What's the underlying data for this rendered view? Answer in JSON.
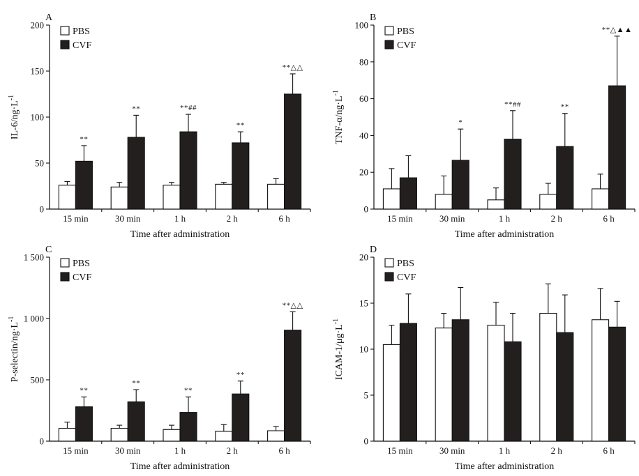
{
  "figure": {
    "series_colors": {
      "PBS": "#ffffff",
      "CVF": "#231f1f"
    },
    "stroke_color": "#111111"
  },
  "chart_data": [
    {
      "panel": "A",
      "type": "bar",
      "ylabel": "IL-6/ng·L",
      "ylabel_sup": "-1",
      "xlabel": "Time after administration",
      "categories": [
        "15 min",
        "30 min",
        "1 h",
        "2 h",
        "6 h"
      ],
      "ylim": [
        0,
        200
      ],
      "yticks": [
        0,
        50,
        100,
        150,
        200
      ],
      "ytick_labels": [
        "0",
        "50",
        "100",
        "150",
        "200"
      ],
      "legend": [
        "PBS",
        "CVF"
      ],
      "legend_position": "top-left",
      "series": [
        {
          "name": "PBS",
          "values": [
            26,
            24,
            26,
            27,
            27
          ],
          "errors": [
            4,
            5,
            3,
            2,
            6
          ]
        },
        {
          "name": "CVF",
          "values": [
            52,
            78,
            84,
            72,
            125
          ],
          "errors": [
            17,
            24,
            19,
            12,
            22
          ]
        }
      ],
      "annotations": [
        "**",
        "**",
        "**##",
        "**",
        "**△△"
      ]
    },
    {
      "panel": "B",
      "type": "bar",
      "ylabel": "TNF-α/ng·L",
      "ylabel_sup": "-1",
      "xlabel": "Time after administration",
      "categories": [
        "15 min",
        "30 min",
        "1 h",
        "2 h",
        "6 h"
      ],
      "ylim": [
        0,
        100
      ],
      "yticks": [
        0,
        20,
        40,
        60,
        80,
        100
      ],
      "ytick_labels": [
        "0",
        "20",
        "40",
        "60",
        "80",
        "100"
      ],
      "legend": [
        "PBS",
        "CVF"
      ],
      "legend_position": "top-left",
      "series": [
        {
          "name": "PBS",
          "values": [
            11,
            8,
            5,
            8,
            11
          ],
          "errors": [
            11,
            10,
            6.5,
            6,
            8
          ]
        },
        {
          "name": "CVF",
          "values": [
            17,
            26.5,
            38,
            34,
            67
          ],
          "errors": [
            12,
            17,
            15.5,
            18,
            27
          ]
        }
      ],
      "annotations": [
        "",
        "*",
        "**##",
        "**",
        "**△▲▲"
      ]
    },
    {
      "panel": "C",
      "type": "bar",
      "ylabel": "P-selectin/ng·L",
      "ylabel_sup": "-1",
      "xlabel": "Time after administration",
      "categories": [
        "15 min",
        "30 min",
        "1 h",
        "2 h",
        "6 h"
      ],
      "ylim": [
        0,
        1500
      ],
      "yticks": [
        0,
        500,
        1000,
        1500
      ],
      "ytick_labels": [
        "0",
        "500",
        "1 000",
        "1 500"
      ],
      "legend": [
        "PBS",
        "CVF"
      ],
      "legend_position": "top-left",
      "series": [
        {
          "name": "PBS",
          "values": [
            105,
            105,
            95,
            80,
            85
          ],
          "errors": [
            50,
            25,
            35,
            55,
            35
          ]
        },
        {
          "name": "CVF",
          "values": [
            280,
            320,
            235,
            385,
            905
          ],
          "errors": [
            80,
            100,
            125,
            105,
            150
          ]
        }
      ],
      "annotations": [
        "**",
        "**",
        "**",
        "**",
        "**△△"
      ]
    },
    {
      "panel": "D",
      "type": "bar",
      "ylabel": "ICAM-1/μg·L",
      "ylabel_sup": "-1",
      "xlabel": "Time after administration",
      "categories": [
        "15 min",
        "30 min",
        "1 h",
        "2 h",
        "6 h"
      ],
      "ylim": [
        0,
        20
      ],
      "yticks": [
        0,
        5,
        10,
        15,
        20
      ],
      "ytick_labels": [
        "0",
        "5",
        "10",
        "15",
        "20"
      ],
      "legend": [
        "PBS",
        "CVF"
      ],
      "legend_position": "top-left",
      "series": [
        {
          "name": "PBS",
          "values": [
            10.5,
            12.3,
            12.6,
            13.9,
            13.2
          ],
          "errors": [
            2.1,
            1.6,
            2.5,
            3.2,
            3.4
          ]
        },
        {
          "name": "CVF",
          "values": [
            12.8,
            13.2,
            10.8,
            11.8,
            12.4
          ],
          "errors": [
            3.2,
            3.5,
            3.1,
            4.1,
            2.8
          ]
        }
      ],
      "annotations": [
        "",
        "",
        "",
        "",
        ""
      ]
    }
  ]
}
